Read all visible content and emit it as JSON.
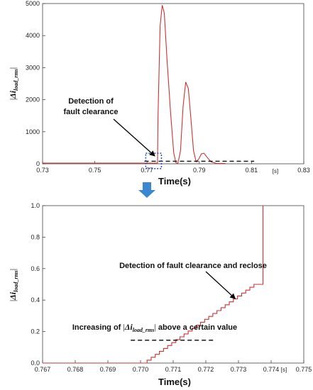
{
  "chart_data": [
    {
      "type": "line",
      "xlim": [
        0.73,
        0.83
      ],
      "ylim": [
        0,
        5000
      ],
      "x_ticks": [
        "0.73",
        "0.75",
        "0.77",
        "0.79",
        "0.81",
        "0.83"
      ],
      "y_ticks": [
        "0",
        "1000",
        "2000",
        "3000",
        "4000",
        "5000"
      ],
      "xlabel": "Time(s)",
      "x_unit": "[s]",
      "ylabel": {
        "delta": "Δ",
        "i": "i",
        "sub": "load_rms"
      },
      "grid": false,
      "series": [
        {
          "color": "#cc3333",
          "points": [
            [
              0.73,
              20
            ],
            [
              0.774,
              20
            ],
            [
              0.7742,
              1500
            ],
            [
              0.775,
              4300
            ],
            [
              0.7758,
              4950
            ],
            [
              0.7766,
              4700
            ],
            [
              0.7776,
              3300
            ],
            [
              0.779,
              1600
            ],
            [
              0.7802,
              350
            ],
            [
              0.781,
              40
            ],
            [
              0.7818,
              10
            ],
            [
              0.7828,
              400
            ],
            [
              0.7838,
              1800
            ],
            [
              0.7848,
              2550
            ],
            [
              0.7858,
              2350
            ],
            [
              0.7868,
              1400
            ],
            [
              0.7878,
              400
            ],
            [
              0.7888,
              60
            ],
            [
              0.7898,
              150
            ],
            [
              0.7908,
              310
            ],
            [
              0.7918,
              330
            ],
            [
              0.793,
              200
            ],
            [
              0.7945,
              60
            ],
            [
              0.7965,
              15
            ],
            [
              0.8,
              10
            ]
          ]
        }
      ],
      "threshold": {
        "x": [
          0.769,
          0.811
        ],
        "y": 80
      },
      "highlight_box": {
        "x": [
          0.7695,
          0.7755
        ],
        "y": [
          -150,
          330
        ]
      },
      "annotation": {
        "text_lines": [
          "Detection of",
          "fault clearance"
        ],
        "target": [
          0.7735,
          200
        ]
      }
    },
    {
      "type": "line",
      "xlim": [
        0.767,
        0.775
      ],
      "ylim": [
        0,
        1.0
      ],
      "x_ticks": [
        "0.767",
        "0.768",
        "0.769",
        "0.770",
        "0.771",
        "0.772",
        "0.773",
        "0.774",
        "0.775"
      ],
      "y_ticks": [
        "0.0",
        "0.2",
        "0.4",
        "0.6",
        "0.8",
        "1.0"
      ],
      "xlabel": "Time(s)",
      "x_unit": "[s]",
      "ylabel": {
        "delta": "Δ",
        "i": "i",
        "sub": "load_rms"
      },
      "grid": false,
      "series": [
        {
          "color": "#cc3333",
          "step_start": 0.7702,
          "step_end": 0.7736,
          "step_count": 27,
          "step_top": 0.5,
          "final_x": 0.77375,
          "final_y": 1.0
        }
      ],
      "threshold": {
        "x": [
          0.7697,
          0.7723
        ],
        "y": 0.145
      },
      "annotation_top": {
        "text": "Detection of fault clearance and reclose",
        "target": [
          0.7729,
          0.4
        ]
      },
      "annotation_bottom": {
        "before": "Increasing of ",
        "after": " above a certain value"
      }
    }
  ],
  "arrow_color": "#3b88d0"
}
